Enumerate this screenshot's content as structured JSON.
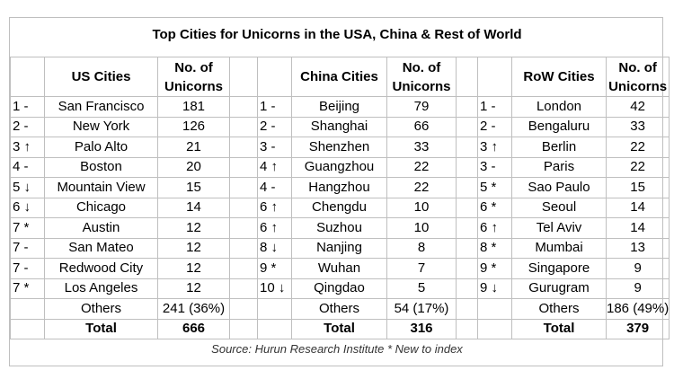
{
  "title": "Top Cities for Unicorns in the USA, China & Rest of World",
  "headers": {
    "us_cities": "US Cities",
    "china_cities": "China Cities",
    "row_cities": "RoW Cities",
    "count_line1": "No. of",
    "count_line2": "Unicorns"
  },
  "rows": [
    {
      "us_rank": "1 -",
      "us_city": "San Francisco",
      "us_count": "181",
      "cn_rank": "1 -",
      "cn_city": "Beijing",
      "cn_count": "79",
      "rw_rank": "1 -",
      "rw_city": "London",
      "rw_count": "42"
    },
    {
      "us_rank": "2 -",
      "us_city": "New York",
      "us_count": "126",
      "cn_rank": "2 -",
      "cn_city": "Shanghai",
      "cn_count": "66",
      "rw_rank": "2 -",
      "rw_city": "Bengaluru",
      "rw_count": "33"
    },
    {
      "us_rank": "3 ↑",
      "us_city": "Palo Alto",
      "us_count": "21",
      "cn_rank": "3 -",
      "cn_city": "Shenzhen",
      "cn_count": "33",
      "rw_rank": "3 ↑",
      "rw_city": "Berlin",
      "rw_count": "22"
    },
    {
      "us_rank": "4 -",
      "us_city": "Boston",
      "us_count": "20",
      "cn_rank": "4 ↑",
      "cn_city": "Guangzhou",
      "cn_count": "22",
      "rw_rank": "3 -",
      "rw_city": "Paris",
      "rw_count": "22"
    },
    {
      "us_rank": "5 ↓",
      "us_city": "Mountain View",
      "us_count": "15",
      "cn_rank": "4 -",
      "cn_city": "Hangzhou",
      "cn_count": "22",
      "rw_rank": "5 *",
      "rw_city": "Sao Paulo",
      "rw_count": "15"
    },
    {
      "us_rank": "6 ↓",
      "us_city": "Chicago",
      "us_count": "14",
      "cn_rank": "6 ↑",
      "cn_city": "Chengdu",
      "cn_count": "10",
      "rw_rank": "6 *",
      "rw_city": "Seoul",
      "rw_count": "14"
    },
    {
      "us_rank": "7 *",
      "us_city": "Austin",
      "us_count": "12",
      "cn_rank": "6 ↑",
      "cn_city": "Suzhou",
      "cn_count": "10",
      "rw_rank": "6 ↑",
      "rw_city": "Tel Aviv",
      "rw_count": "14"
    },
    {
      "us_rank": "7 -",
      "us_city": "San Mateo",
      "us_count": "12",
      "cn_rank": "8 ↓",
      "cn_city": "Nanjing",
      "cn_count": "8",
      "rw_rank": "8 *",
      "rw_city": "Mumbai",
      "rw_count": "13"
    },
    {
      "us_rank": "7 -",
      "us_city": "Redwood City",
      "us_count": "12",
      "cn_rank": "9 *",
      "cn_city": "Wuhan",
      "cn_count": "7",
      "rw_rank": "9 *",
      "rw_city": "Singapore",
      "rw_count": "9"
    },
    {
      "us_rank": "7 *",
      "us_city": "Los Angeles",
      "us_count": "12",
      "cn_rank": "10 ↓",
      "cn_city": "Qingdao",
      "cn_count": "5",
      "rw_rank": "9 ↓",
      "rw_city": "Gurugram",
      "rw_count": "9"
    }
  ],
  "others": {
    "label": "Others",
    "us_count": "241 (36%)",
    "cn_count": "54 (17%)",
    "rw_count": "186 (49%)"
  },
  "total": {
    "label": "Total",
    "us_count": "666",
    "cn_count": "316",
    "rw_count": "379"
  },
  "source": "Source: Hurun Research Institute * New to index"
}
